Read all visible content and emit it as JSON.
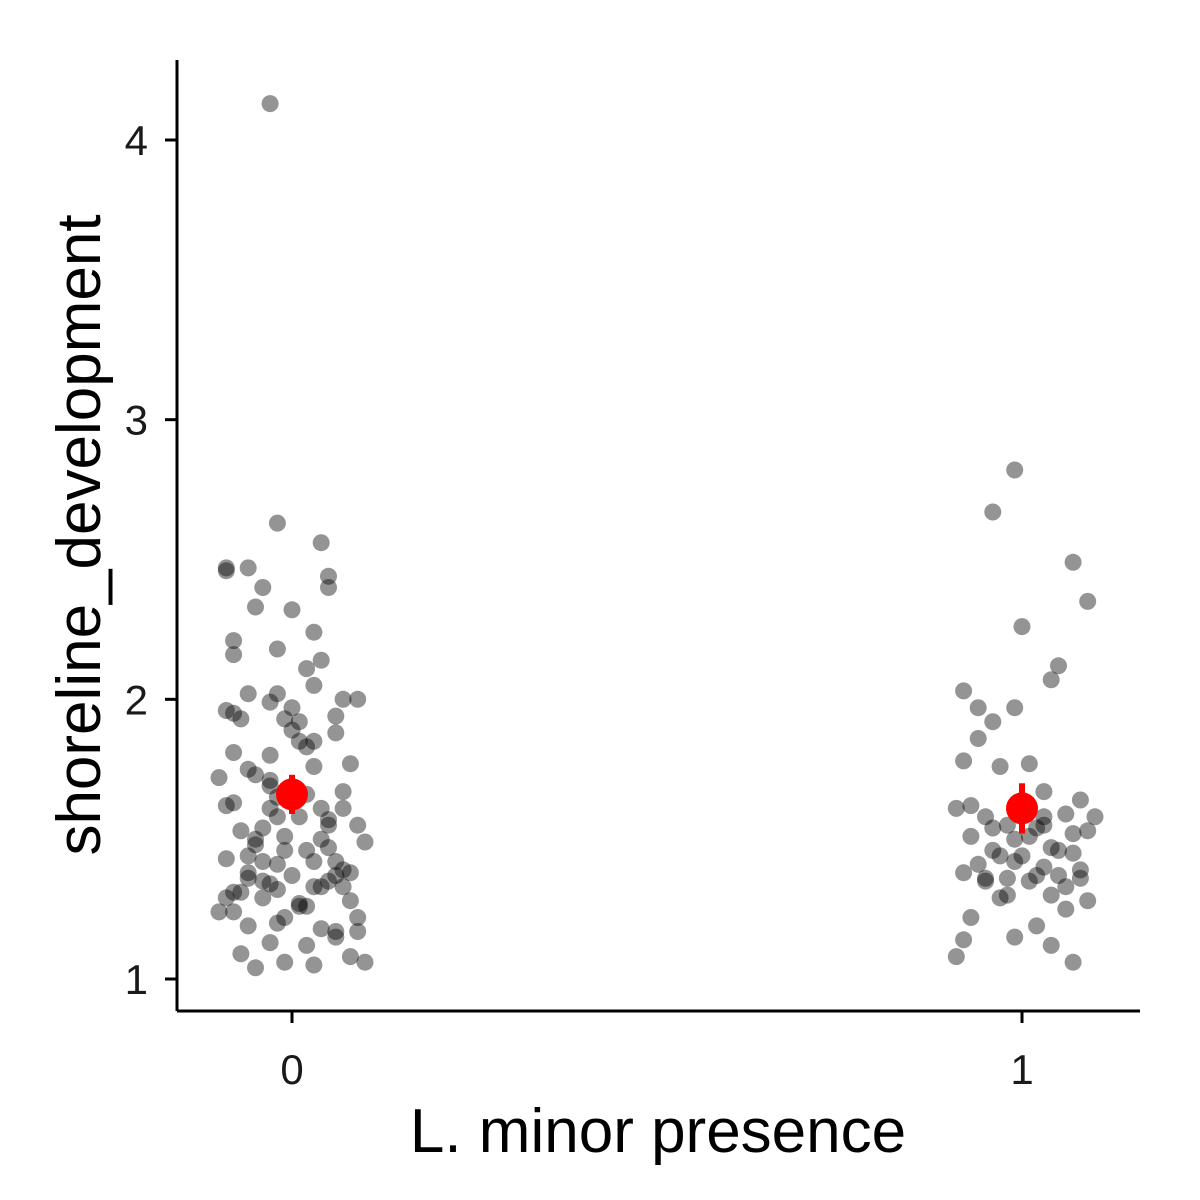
{
  "chart_data": {
    "type": "scatter",
    "xlabel": "L. minor presence",
    "ylabel": "shoreline_development",
    "categories": [
      "0",
      "1"
    ],
    "x_ticks": [
      "0",
      "1"
    ],
    "y_ticks": [
      1,
      2,
      3,
      4
    ],
    "ylim": [
      0.89,
      4.28
    ],
    "grid": false,
    "legend": "none",
    "colors": {
      "points": "#000000",
      "point_opacity": 0.42,
      "mean": "#ff0000",
      "axis": "#000000"
    },
    "mean_markers": [
      {
        "category": "0",
        "mean": 1.66,
        "lower": 1.59,
        "upper": 1.73
      },
      {
        "category": "1",
        "mean": 1.61,
        "lower": 1.52,
        "upper": 1.7
      }
    ],
    "series": [
      {
        "category": "0",
        "jitter_x": [
          -0.03,
          -0.09,
          -0.06,
          -0.09,
          -0.04,
          -0.08,
          0.05,
          -0.02,
          -0.08,
          -0.05,
          0.03,
          -0.02,
          -0.06,
          0.03,
          -0.03,
          -0.02,
          0.07,
          0.04,
          -0.08,
          0.02,
          -0.01,
          0.09,
          -0.06,
          0.0,
          0.05,
          -0.03,
          -0.07,
          0.01,
          0.08,
          -0.09,
          0.06,
          0.03,
          -0.02,
          0.04,
          -0.1,
          -0.05,
          0.02,
          -0.03,
          0.07,
          -0.08,
          0.01,
          0.09,
          -0.04,
          0.05,
          -0.07,
          -0.01,
          0.04,
          0.1,
          -0.05,
          0.02,
          -0.09,
          0.06,
          -0.02,
          0.08,
          -0.06,
          0.0,
          0.05,
          -0.03,
          0.03,
          -0.08,
          0.07,
          -0.04,
          0.01,
          -0.1,
          0.09,
          -0.02,
          0.04,
          -0.06,
          0.06,
          -0.03,
          0.02,
          -0.07,
          0.08,
          -0.01,
          0.03,
          -0.05,
          0.1,
          -0.09,
          0.05,
          -0.02,
          0.01,
          -0.06,
          0.07,
          -0.04,
          0.03,
          -0.08,
          0.06,
          0.0,
          -0.03,
          0.04,
          -0.07,
          0.02,
          -0.01,
          0.09,
          -0.05,
          0.06,
          -0.02,
          0.0,
          -0.09,
          0.03,
          0.05,
          -0.04,
          0.08,
          -0.06,
          0.02,
          -0.03,
          0.07,
          -0.01,
          0.04,
          -0.08,
          0.06,
          0.01
        ],
        "values": [
          4.13,
          2.47,
          2.47,
          2.46,
          2.4,
          2.21,
          2.44,
          2.63,
          2.16,
          2.33,
          2.24,
          2.18,
          2.02,
          2.05,
          1.99,
          2.02,
          2.0,
          2.14,
          1.95,
          2.11,
          1.93,
          2.0,
          1.75,
          2.32,
          2.4,
          1.8,
          1.93,
          1.85,
          1.77,
          1.62,
          1.94,
          1.85,
          1.65,
          2.56,
          1.72,
          1.73,
          1.66,
          1.61,
          1.67,
          1.63,
          1.58,
          1.55,
          1.54,
          1.57,
          1.53,
          1.51,
          1.5,
          1.49,
          1.5,
          1.46,
          1.43,
          1.42,
          1.41,
          1.38,
          1.38,
          1.37,
          1.35,
          1.34,
          1.33,
          1.31,
          1.33,
          1.29,
          1.27,
          1.24,
          1.22,
          1.2,
          1.18,
          1.19,
          1.17,
          1.13,
          1.12,
          1.09,
          1.08,
          1.06,
          1.05,
          1.04,
          1.06,
          1.29,
          1.47,
          1.32,
          1.26,
          1.44,
          1.39,
          1.35,
          1.42,
          1.81,
          1.88,
          1.97,
          1.69,
          1.61,
          1.31,
          1.26,
          1.22,
          1.17,
          1.48,
          1.37,
          1.58,
          1.89,
          1.96,
          1.76,
          1.55,
          1.42,
          1.28,
          1.36,
          1.83,
          1.71,
          1.61,
          1.46,
          1.33,
          1.24,
          1.15,
          1.92
        ],
        "note": ""
      },
      {
        "category": "1",
        "jitter_x": [
          -0.01,
          -0.04,
          0.07,
          0.09,
          0.0,
          -0.08,
          0.04,
          -0.01,
          0.05,
          -0.04,
          -0.06,
          -0.08,
          0.01,
          -0.03,
          0.08,
          -0.09,
          0.06,
          -0.05,
          0.1,
          0.03,
          -0.02,
          0.02,
          0.09,
          -0.07,
          -0.01,
          0.04,
          -0.04,
          0.07,
          0.0,
          -0.06,
          0.03,
          -0.08,
          0.05,
          -0.02,
          0.08,
          0.01,
          -0.05,
          0.06,
          -0.03,
          0.09,
          -0.07,
          0.02,
          -0.01,
          0.04,
          -0.09,
          0.07,
          -0.06,
          0.03,
          0.0,
          -0.04,
          0.05,
          0.02,
          -0.02,
          0.06,
          -0.08,
          0.01,
          -0.03,
          0.08,
          -0.05,
          0.04,
          -0.07,
          0.03,
          0.07,
          -0.01
        ],
        "values": [
          2.82,
          2.67,
          2.49,
          2.35,
          2.26,
          2.03,
          2.07,
          1.97,
          2.12,
          1.92,
          1.86,
          1.78,
          1.77,
          1.76,
          1.64,
          1.61,
          1.59,
          1.58,
          1.58,
          1.55,
          1.55,
          1.54,
          1.53,
          1.51,
          1.5,
          1.47,
          1.46,
          1.45,
          1.44,
          1.41,
          1.4,
          1.38,
          1.37,
          1.36,
          1.36,
          1.35,
          1.35,
          1.33,
          1.29,
          1.28,
          1.22,
          1.19,
          1.15,
          1.12,
          1.08,
          1.06,
          1.97,
          1.67,
          1.6,
          1.54,
          1.46,
          1.37,
          1.3,
          1.25,
          1.14,
          1.51,
          1.44,
          1.39,
          1.36,
          1.3,
          1.62,
          1.58,
          1.52,
          1.42
        ],
        "note": ""
      }
    ]
  }
}
